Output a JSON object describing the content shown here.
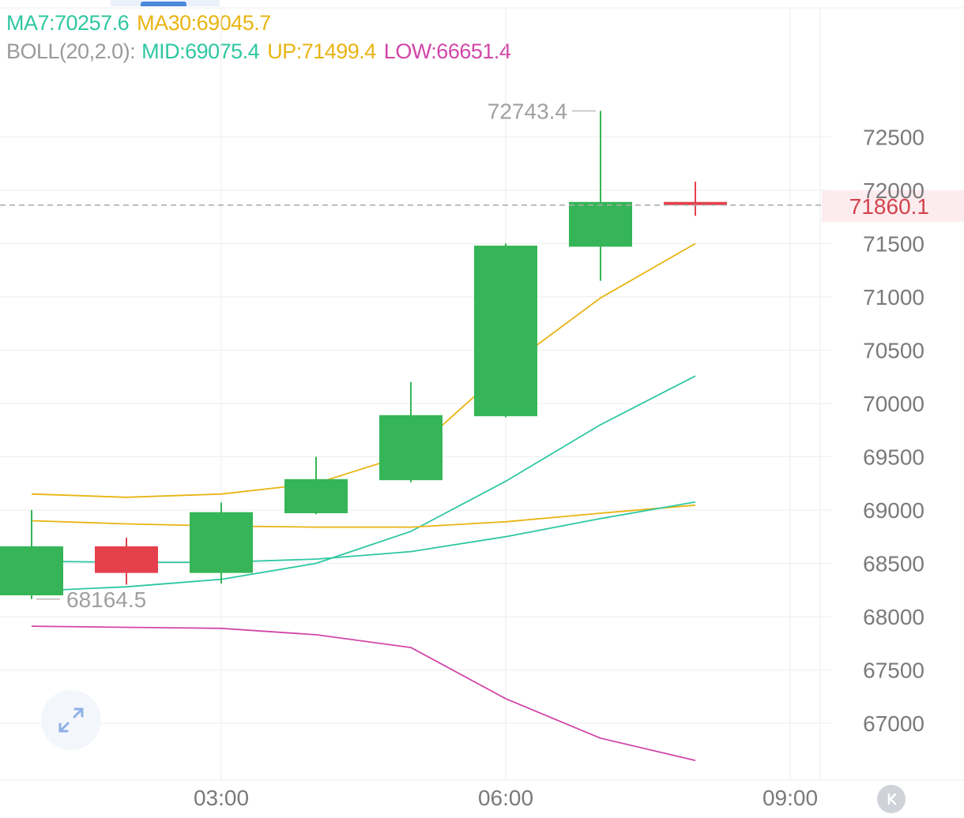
{
  "legend": {
    "ma7_label": "MA7:70257.6",
    "ma30_label": "MA30:69045.7",
    "boll_label": "BOLL(20,2.0):",
    "mid_label": "MID:69075.4",
    "up_label": "UP:71499.4",
    "low_label": "LOW:66651.4"
  },
  "current_price": "71860.1",
  "colors": {
    "up_candle": "#35b557",
    "down_candle": "#e5414c",
    "ma7": "#2ec7a1",
    "ma30": "#e9b413",
    "boll_mid": "#2ec7a1",
    "boll_up": "#e9b413",
    "boll_low": "#d146a8",
    "grid": "#eeeeee",
    "axis_text": "#7a7a7a",
    "annotation_text": "#a0a0a0",
    "price_text": "#d2434e"
  },
  "icons": {
    "expand": "expand-arrows-icon",
    "back": "chevrons-left-icon"
  },
  "chart_data": {
    "type": "candlestick",
    "y_axis": {
      "ticks": [
        67000,
        67500,
        68000,
        68500,
        69000,
        69500,
        70000,
        70500,
        71000,
        71500,
        72000,
        72500
      ],
      "position": "right"
    },
    "x_axis": {
      "ticks": [
        {
          "label": "03:00",
          "t": 3.0
        },
        {
          "label": "06:00",
          "t": 6.0
        },
        {
          "label": "09:00",
          "t": 9.0
        }
      ]
    },
    "candles": [
      {
        "t": 1.0,
        "open": 68200,
        "high": 69000,
        "low": 68164.5,
        "close": 68660
      },
      {
        "t": 2.0,
        "open": 68660,
        "high": 68740,
        "low": 68300,
        "close": 68410
      },
      {
        "t": 3.0,
        "open": 68410,
        "high": 69070,
        "low": 68310,
        "close": 68980
      },
      {
        "t": 4.0,
        "open": 68970,
        "high": 69500,
        "low": 68960,
        "close": 69290
      },
      {
        "t": 5.0,
        "open": 69280,
        "high": 70200,
        "low": 69260,
        "close": 69890
      },
      {
        "t": 6.0,
        "open": 69880,
        "high": 71500,
        "low": 69870,
        "close": 71480
      },
      {
        "t": 7.0,
        "open": 71470,
        "high": 72743.4,
        "low": 71150,
        "close": 71890
      },
      {
        "t": 8.0,
        "open": 71890,
        "high": 72080,
        "low": 71760,
        "close": 71860.1
      }
    ],
    "high_annotation": {
      "t": 7.0,
      "value": 72743.4,
      "label": "72743.4"
    },
    "low_annotation": {
      "t": 1.0,
      "value": 68164.5,
      "label": "68164.5"
    },
    "current_price_value": 71860.1,
    "series": [
      {
        "name": "MA7",
        "color_key": "ma7",
        "points": [
          [
            1,
            68240
          ],
          [
            2,
            68280
          ],
          [
            3,
            68350
          ],
          [
            4,
            68500
          ],
          [
            5,
            68800
          ],
          [
            6,
            69270
          ],
          [
            7,
            69800
          ],
          [
            8,
            70257.6
          ]
        ]
      },
      {
        "name": "MA30",
        "color_key": "ma30",
        "points": [
          [
            1,
            68900
          ],
          [
            2,
            68870
          ],
          [
            3,
            68850
          ],
          [
            4,
            68840
          ],
          [
            5,
            68840
          ],
          [
            6,
            68890
          ],
          [
            7,
            68970
          ],
          [
            8,
            69045.7
          ]
        ]
      },
      {
        "name": "MID",
        "color_key": "boll_mid",
        "points": [
          [
            1,
            68520
          ],
          [
            2,
            68510
          ],
          [
            3,
            68510
          ],
          [
            4,
            68540
          ],
          [
            5,
            68610
          ],
          [
            6,
            68750
          ],
          [
            7,
            68920
          ],
          [
            8,
            69075.4
          ]
        ]
      },
      {
        "name": "UP",
        "color_key": "boll_up",
        "points": [
          [
            1,
            69150
          ],
          [
            2,
            69120
          ],
          [
            3,
            69150
          ],
          [
            4,
            69250
          ],
          [
            5,
            69530
          ],
          [
            6,
            70330
          ],
          [
            7,
            70990
          ],
          [
            8,
            71499.4
          ]
        ]
      },
      {
        "name": "LOW",
        "color_key": "boll_low",
        "points": [
          [
            1,
            67910
          ],
          [
            2,
            67900
          ],
          [
            3,
            67890
          ],
          [
            4,
            67830
          ],
          [
            5,
            67710
          ],
          [
            6,
            67230
          ],
          [
            7,
            66860
          ],
          [
            8,
            66651.4
          ]
        ]
      }
    ]
  }
}
